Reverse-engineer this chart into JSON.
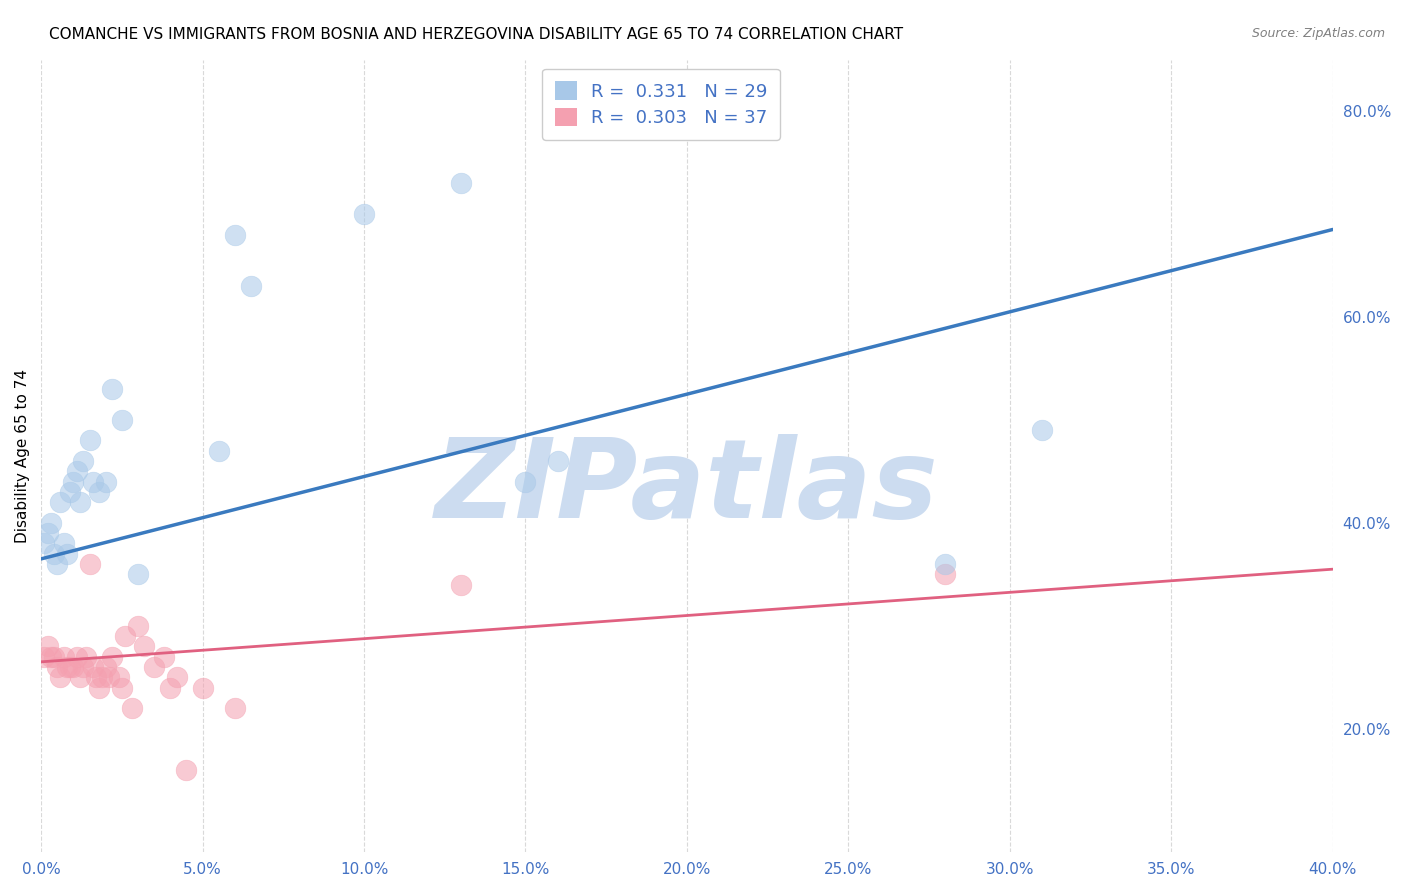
{
  "title": "COMANCHE VS IMMIGRANTS FROM BOSNIA AND HERZEGOVINA DISABILITY AGE 65 TO 74 CORRELATION CHART",
  "source": "Source: ZipAtlas.com",
  "ylabel": "Disability Age 65 to 74",
  "xlabel": "",
  "xlim": [
    0.0,
    0.4
  ],
  "ylim": [
    0.08,
    0.85
  ],
  "xticks": [
    0.0,
    0.05,
    0.1,
    0.15,
    0.2,
    0.25,
    0.3,
    0.35,
    0.4
  ],
  "yticks_right": [
    0.2,
    0.4,
    0.6,
    0.8
  ],
  "comanche_x": [
    0.001,
    0.002,
    0.003,
    0.004,
    0.005,
    0.006,
    0.007,
    0.008,
    0.009,
    0.01,
    0.011,
    0.012,
    0.013,
    0.015,
    0.016,
    0.018,
    0.02,
    0.022,
    0.025,
    0.03,
    0.055,
    0.06,
    0.065,
    0.1,
    0.13,
    0.15,
    0.16,
    0.28,
    0.31
  ],
  "comanche_y": [
    0.38,
    0.39,
    0.4,
    0.37,
    0.36,
    0.42,
    0.38,
    0.37,
    0.43,
    0.44,
    0.45,
    0.42,
    0.46,
    0.48,
    0.44,
    0.43,
    0.44,
    0.53,
    0.5,
    0.35,
    0.47,
    0.68,
    0.63,
    0.7,
    0.73,
    0.44,
    0.46,
    0.36,
    0.49
  ],
  "bosnia_x": [
    0.001,
    0.002,
    0.003,
    0.004,
    0.005,
    0.006,
    0.007,
    0.008,
    0.009,
    0.01,
    0.011,
    0.012,
    0.013,
    0.014,
    0.015,
    0.016,
    0.017,
    0.018,
    0.019,
    0.02,
    0.021,
    0.022,
    0.024,
    0.025,
    0.026,
    0.028,
    0.03,
    0.032,
    0.035,
    0.038,
    0.04,
    0.042,
    0.045,
    0.05,
    0.06,
    0.13,
    0.28
  ],
  "bosnia_y": [
    0.27,
    0.28,
    0.27,
    0.27,
    0.26,
    0.25,
    0.27,
    0.26,
    0.26,
    0.26,
    0.27,
    0.25,
    0.26,
    0.27,
    0.36,
    0.26,
    0.25,
    0.24,
    0.25,
    0.26,
    0.25,
    0.27,
    0.25,
    0.24,
    0.29,
    0.22,
    0.3,
    0.28,
    0.26,
    0.27,
    0.24,
    0.25,
    0.16,
    0.24,
    0.22,
    0.34,
    0.35
  ],
  "comanche_color": "#a8c8e8",
  "bosnia_color": "#f4a0b0",
  "comanche_line_color": "#3a7abf",
  "bosnia_line_color": "#e06080",
  "R_comanche": 0.331,
  "N_comanche": 29,
  "R_bosnia": 0.303,
  "N_bosnia": 37,
  "watermark": "ZIPatlas",
  "watermark_color": "#ccdcf0",
  "axis_label_color": "#4472c4",
  "tick_label_color": "#4472c4",
  "grid_color": "#d0d0d0",
  "background_color": "#ffffff",
  "title_fontsize": 11,
  "axis_label_fontsize": 11,
  "tick_fontsize": 11,
  "legend_fontsize": 13
}
